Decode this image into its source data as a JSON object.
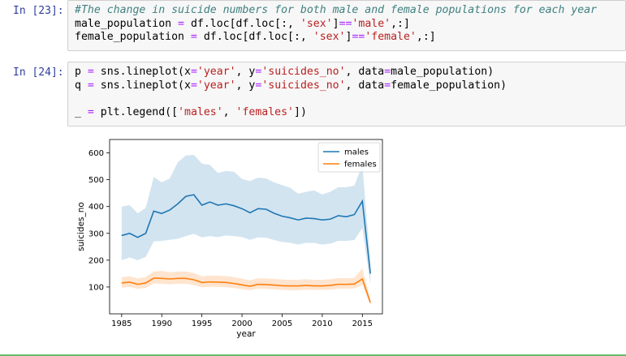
{
  "cells": [
    {
      "prompt": "In [23]:",
      "lines": [
        [
          {
            "t": "#The change in suicide numbers for both male and female populations for each year",
            "c": "com"
          }
        ],
        [
          {
            "t": "male_population ",
            "c": ""
          },
          {
            "t": "=",
            "c": "op"
          },
          {
            "t": " df.loc[df.loc[:, ",
            "c": ""
          },
          {
            "t": "'sex'",
            "c": "str"
          },
          {
            "t": "]",
            "c": ""
          },
          {
            "t": "==",
            "c": "op"
          },
          {
            "t": "'male'",
            "c": "str"
          },
          {
            "t": ",:]",
            "c": ""
          }
        ],
        [
          {
            "t": "female_population ",
            "c": ""
          },
          {
            "t": "=",
            "c": "op"
          },
          {
            "t": " df.loc[df.loc[:, ",
            "c": ""
          },
          {
            "t": "'sex'",
            "c": "str"
          },
          {
            "t": "]",
            "c": ""
          },
          {
            "t": "==",
            "c": "op"
          },
          {
            "t": "'female'",
            "c": "str"
          },
          {
            "t": ",:]",
            "c": ""
          }
        ]
      ]
    },
    {
      "prompt": "In [24]:",
      "lines": [
        [
          {
            "t": "p ",
            "c": ""
          },
          {
            "t": "=",
            "c": "op"
          },
          {
            "t": " sns.lineplot(x",
            "c": ""
          },
          {
            "t": "=",
            "c": "op"
          },
          {
            "t": "'year'",
            "c": "str"
          },
          {
            "t": ", y",
            "c": ""
          },
          {
            "t": "=",
            "c": "op"
          },
          {
            "t": "'suicides_no'",
            "c": "str"
          },
          {
            "t": ", data",
            "c": ""
          },
          {
            "t": "=",
            "c": "op"
          },
          {
            "t": "male_population)",
            "c": ""
          }
        ],
        [
          {
            "t": "q ",
            "c": ""
          },
          {
            "t": "=",
            "c": "op"
          },
          {
            "t": " sns.lineplot(x",
            "c": ""
          },
          {
            "t": "=",
            "c": "op"
          },
          {
            "t": "'year'",
            "c": "str"
          },
          {
            "t": ", y",
            "c": ""
          },
          {
            "t": "=",
            "c": "op"
          },
          {
            "t": "'suicides_no'",
            "c": "str"
          },
          {
            "t": ", data",
            "c": ""
          },
          {
            "t": "=",
            "c": "op"
          },
          {
            "t": "female_population)",
            "c": ""
          }
        ],
        [
          {
            "t": "",
            "c": ""
          }
        ],
        [
          {
            "t": "_ ",
            "c": ""
          },
          {
            "t": "=",
            "c": "op"
          },
          {
            "t": " plt.legend([",
            "c": ""
          },
          {
            "t": "'males'",
            "c": "str"
          },
          {
            "t": ", ",
            "c": ""
          },
          {
            "t": "'females'",
            "c": "str"
          },
          {
            "t": "])",
            "c": ""
          }
        ]
      ]
    }
  ],
  "chart_data": {
    "type": "line",
    "x": [
      1985,
      1986,
      1987,
      1988,
      1989,
      1990,
      1991,
      1992,
      1993,
      1994,
      1995,
      1996,
      1997,
      1998,
      1999,
      2000,
      2001,
      2002,
      2003,
      2004,
      2005,
      2006,
      2007,
      2008,
      2009,
      2010,
      2011,
      2012,
      2013,
      2014,
      2015,
      2016
    ],
    "series": [
      {
        "name": "males",
        "color": "#1f77b4",
        "values": [
          292,
          300,
          285,
          300,
          383,
          374,
          387,
          410,
          438,
          444,
          405,
          417,
          405,
          410,
          403,
          392,
          377,
          392,
          390,
          375,
          364,
          358,
          350,
          357,
          355,
          350,
          353,
          366,
          362,
          370,
          420,
          150
        ],
        "lower": [
          200,
          210,
          200,
          212,
          270,
          272,
          276,
          280,
          290,
          298,
          285,
          290,
          286,
          292,
          290,
          286,
          276,
          285,
          284,
          275,
          268,
          265,
          258,
          265,
          264,
          258,
          262,
          272,
          272,
          275,
          320,
          110
        ],
        "upper": [
          400,
          405,
          375,
          395,
          510,
          490,
          505,
          565,
          590,
          593,
          560,
          555,
          525,
          533,
          530,
          503,
          495,
          508,
          505,
          490,
          480,
          470,
          448,
          455,
          460,
          445,
          455,
          472,
          472,
          478,
          555,
          190
        ]
      },
      {
        "name": "females",
        "color": "#ff7f0e",
        "values": [
          115,
          118,
          110,
          115,
          133,
          132,
          130,
          132,
          132,
          127,
          117,
          119,
          118,
          117,
          113,
          108,
          103,
          110,
          109,
          107,
          105,
          104,
          104,
          106,
          104,
          104,
          106,
          110,
          110,
          111,
          130,
          42
        ],
        "lower": [
          97,
          100,
          93,
          97,
          113,
          112,
          110,
          112,
          112,
          107,
          99,
          101,
          100,
          99,
          96,
          92,
          88,
          94,
          93,
          91,
          89,
          88,
          88,
          90,
          89,
          89,
          90,
          94,
          94,
          94,
          108,
          33
        ],
        "upper": [
          137,
          140,
          132,
          137,
          158,
          160,
          155,
          158,
          158,
          152,
          140,
          143,
          142,
          141,
          137,
          131,
          125,
          133,
          132,
          130,
          128,
          127,
          127,
          129,
          127,
          127,
          129,
          133,
          133,
          134,
          170,
          52
        ]
      }
    ],
    "xlabel": "year",
    "ylabel": "suicides_no",
    "xlim": [
      1983.5,
      2017.5
    ],
    "ylim": [
      0,
      650
    ],
    "xticks": [
      1985,
      1990,
      1995,
      2000,
      2005,
      2010,
      2015
    ],
    "yticks": [
      100,
      200,
      300,
      400,
      500,
      600
    ],
    "legend": {
      "placement": "upper right",
      "entries": [
        "males",
        "females"
      ]
    },
    "grid": false
  }
}
